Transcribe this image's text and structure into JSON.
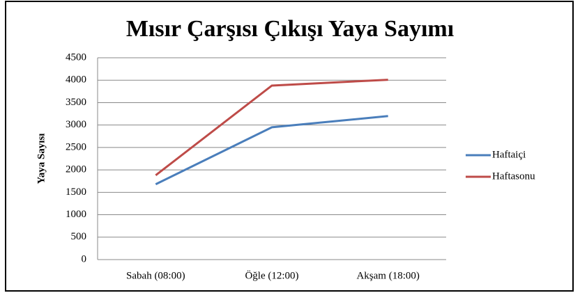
{
  "chart_data": {
    "type": "line",
    "title": "Mısır Çarşısı Çıkışı Yaya Sayımı",
    "y_label": "Yaya Sayısı",
    "categories": [
      "Sabah (08:00)",
      "Öğle (12:00)",
      "Akşam (18:00)"
    ],
    "series": [
      {
        "name": "Haftaiçi",
        "color": "#4a7ebb",
        "values": [
          1680,
          2950,
          3200
        ]
      },
      {
        "name": "Haftasonu",
        "color": "#be4b48",
        "values": [
          1880,
          3880,
          4010
        ]
      }
    ],
    "ylim": [
      0,
      4500
    ],
    "yticks": [
      0,
      500,
      1000,
      1500,
      2000,
      2500,
      3000,
      3500,
      4000,
      4500
    ],
    "grid": true,
    "legend": "right"
  }
}
